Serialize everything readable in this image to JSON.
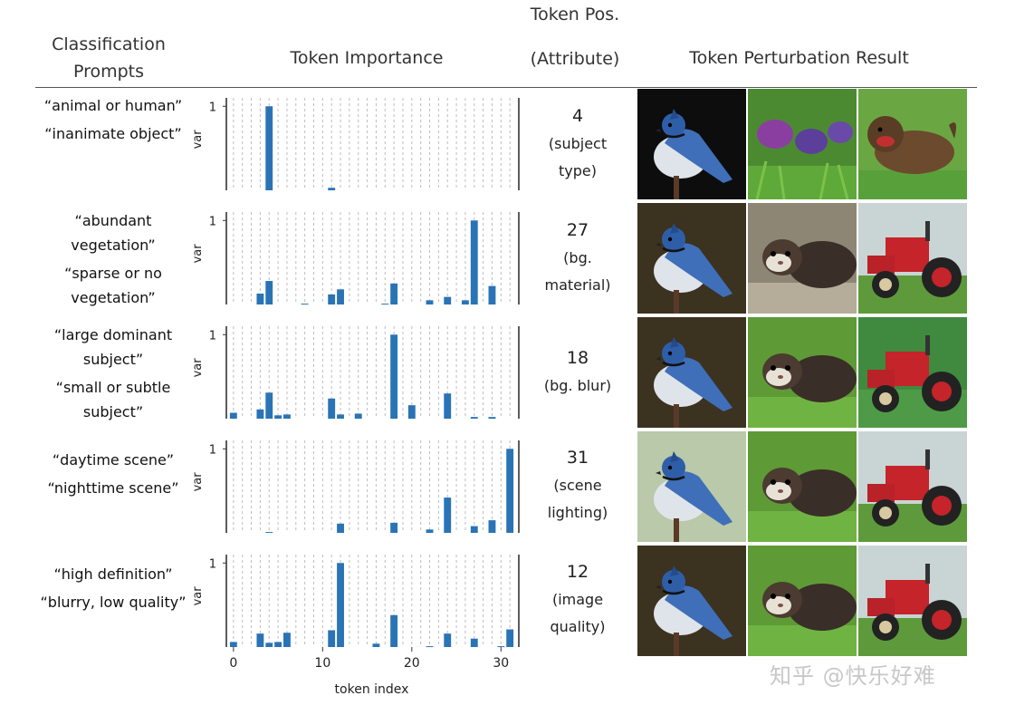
{
  "headers": {
    "prompts": "Classification Prompts",
    "importance": "Token Importance",
    "token_pos_line1": "Token Pos.",
    "token_pos_line2": "(Attribute)",
    "perturbation": "Token Perturbation Result"
  },
  "rows": [
    {
      "prompt_a": "“animal or human”",
      "prompt_b": "“inanimate object”",
      "token": "4",
      "attr_line1": "(subject",
      "attr_line2": "type)"
    },
    {
      "prompt_a": "“abundant vegetation”",
      "prompt_b": "“sparse or no vegetation”",
      "token": "27",
      "attr_line1": "(bg.",
      "attr_line2": "material)"
    },
    {
      "prompt_a": "“large dominant subject”",
      "prompt_b": "“small or subtle subject”",
      "token": "18",
      "attr_line1": "(bg. blur)",
      "attr_line2": ""
    },
    {
      "prompt_a": "“daytime scene”",
      "prompt_b": "“nighttime scene”",
      "token": "31",
      "attr_line1": "(scene",
      "attr_line2": "lighting)"
    },
    {
      "prompt_a": "“high definition”",
      "prompt_b": "“blurry, low quality”",
      "token": "12",
      "attr_line1": "(image",
      "attr_line2": "quality)"
    }
  ],
  "images": [
    [
      "blue-jay",
      "flowers",
      "dog"
    ],
    [
      "blue-jay",
      "ferret",
      "tractor"
    ],
    [
      "blue-jay",
      "ferret",
      "tractor"
    ],
    [
      "blue-jay",
      "ferret",
      "tractor"
    ],
    [
      "blue-jay",
      "ferret",
      "tractor"
    ]
  ],
  "watermark": "知乎 @快乐好难",
  "chart_data": {
    "type": "bar",
    "xlabel": "token index",
    "ylabel": "var",
    "xticks": [
      0,
      10,
      20,
      30
    ],
    "ytick": "1",
    "xlim": [
      -1,
      32
    ],
    "ylim": [
      0,
      1.1
    ],
    "bar_color": "#2a74b5",
    "panels": [
      {
        "x": [
          4,
          11
        ],
        "values": [
          1.0,
          0.03
        ]
      },
      {
        "x": [
          3,
          4,
          8,
          11,
          12,
          17,
          18,
          22,
          24,
          26,
          27,
          29
        ],
        "values": [
          0.13,
          0.28,
          0.01,
          0.12,
          0.18,
          0.01,
          0.25,
          0.05,
          0.09,
          0.05,
          1.0,
          0.22
        ]
      },
      {
        "x": [
          0,
          3,
          4,
          5,
          6,
          11,
          12,
          14,
          18,
          20,
          24,
          27,
          29
        ],
        "values": [
          0.07,
          0.11,
          0.31,
          0.04,
          0.05,
          0.24,
          0.05,
          0.06,
          1.0,
          0.16,
          0.3,
          0.02,
          0.02
        ]
      },
      {
        "x": [
          4,
          12,
          18,
          22,
          24,
          27,
          29,
          31
        ],
        "values": [
          0.01,
          0.11,
          0.12,
          0.04,
          0.42,
          0.08,
          0.15,
          1.0
        ]
      },
      {
        "x": [
          0,
          3,
          4,
          5,
          6,
          11,
          12,
          16,
          18,
          22,
          24,
          27,
          30,
          31
        ],
        "values": [
          0.06,
          0.16,
          0.05,
          0.06,
          0.17,
          0.2,
          1.0,
          0.04,
          0.38,
          0.01,
          0.16,
          0.1,
          0.01,
          0.21
        ]
      }
    ]
  }
}
